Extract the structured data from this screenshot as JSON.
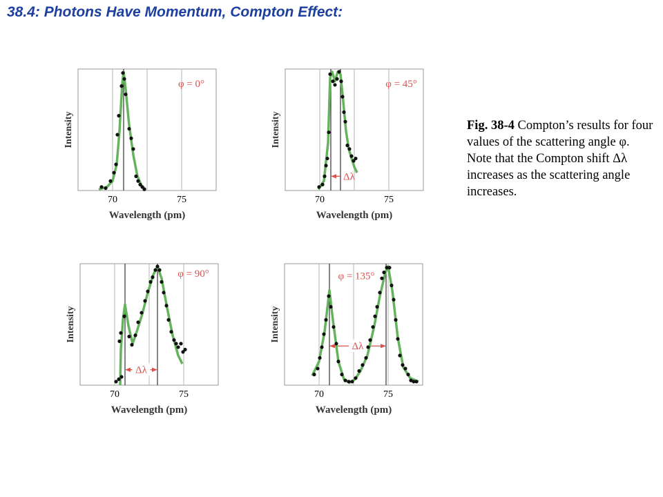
{
  "title": "38.4: Photons Have Momentum, Compton Effect:",
  "caption": {
    "label": "Fig. 38-4",
    "text": "Compton’s results for four values of the scattering angle φ. Note that the Compton shift Δλ increases as the scattering angle increases."
  },
  "chart_data": [
    {
      "type": "scatter",
      "annotation": "φ = 0°",
      "xlabel": "Wavelength (pm)",
      "ylabel": "Intensity",
      "xlim": [
        67.5,
        77.5
      ],
      "ylim": [
        0,
        1
      ],
      "xticks": [
        70,
        75
      ],
      "xgrid": [
        70,
        72.5,
        75
      ],
      "reference_lines": [
        70.8
      ],
      "point_color": "#111111",
      "fit_color": "#66b35e",
      "points": {
        "x": [
          69.2,
          69.5,
          69.85,
          70.1,
          70.25,
          70.35,
          70.45,
          70.65,
          70.75,
          70.85,
          70.95,
          71.2,
          71.35,
          71.5,
          71.7,
          71.85,
          72.0,
          72.15,
          72.3
        ],
        "y": [
          0.03,
          0.02,
          0.08,
          0.15,
          0.22,
          0.47,
          0.63,
          0.88,
          0.99,
          0.94,
          0.81,
          0.52,
          0.44,
          0.35,
          0.12,
          0.08,
          0.05,
          0.03,
          0.01
        ]
      },
      "fit": {
        "x": [
          69.0,
          69.6,
          70.0,
          70.3,
          70.5,
          70.7,
          70.8,
          70.95,
          71.2,
          71.5,
          71.8,
          72.1,
          72.4
        ],
        "y": [
          0.01,
          0.03,
          0.08,
          0.22,
          0.5,
          0.9,
          1.0,
          0.85,
          0.55,
          0.3,
          0.12,
          0.04,
          0.01
        ]
      }
    },
    {
      "type": "scatter",
      "annotation": "φ = 45°",
      "delta_label": "Δλ",
      "xlabel": "Wavelength (pm)",
      "ylabel": "Intensity",
      "xlim": [
        67.5,
        77.5
      ],
      "ylim": [
        0,
        1
      ],
      "xticks": [
        70,
        75
      ],
      "xgrid": [
        70,
        72.5,
        75
      ],
      "reference_lines": [
        70.8,
        71.5
      ],
      "point_color": "#111111",
      "fit_color": "#66b35e",
      "arrow_color": "#d9534f",
      "points": {
        "x": [
          69.95,
          70.2,
          70.35,
          70.45,
          70.55,
          70.65,
          70.75,
          70.95,
          71.1,
          71.25,
          71.4,
          71.55,
          71.65,
          71.75,
          71.85,
          72.0,
          72.15,
          72.3,
          72.45,
          72.6
        ],
        "y": [
          0.03,
          0.05,
          0.12,
          0.21,
          0.27,
          0.49,
          0.98,
          0.92,
          0.89,
          0.94,
          1.0,
          0.92,
          0.79,
          0.66,
          0.58,
          0.38,
          0.35,
          0.29,
          0.25,
          0.27
        ]
      },
      "fit": {
        "x": [
          69.9,
          70.3,
          70.6,
          70.75,
          70.9,
          71.1,
          71.3,
          71.5,
          71.7,
          71.9,
          72.1,
          72.3,
          72.5,
          72.7
        ],
        "y": [
          0.01,
          0.08,
          0.4,
          0.95,
          1.0,
          0.92,
          1.0,
          0.98,
          0.75,
          0.5,
          0.35,
          0.27,
          0.2,
          0.15
        ]
      }
    },
    {
      "type": "scatter",
      "annotation": "φ = 90°",
      "delta_label": "Δλ",
      "xlabel": "Wavelength (pm)",
      "ylabel": "Intensity",
      "xlim": [
        67.5,
        77.5
      ],
      "ylim": [
        0,
        1
      ],
      "xticks": [
        70,
        75
      ],
      "xgrid": [
        70,
        72.5,
        75
      ],
      "reference_lines": [
        70.75,
        73.1
      ],
      "point_color": "#111111",
      "fit_color": "#66b35e",
      "arrow_color": "#d9534f",
      "points": {
        "x": [
          70.1,
          70.3,
          70.5,
          70.35,
          70.45,
          70.7,
          71.05,
          71.25,
          71.5,
          71.7,
          71.95,
          72.2,
          72.4,
          72.6,
          72.75,
          72.95,
          73.1,
          73.25,
          73.4,
          73.55,
          73.75,
          73.9,
          74.1,
          74.3,
          74.45,
          74.6,
          74.8,
          74.95,
          75.1
        ],
        "y": [
          0.03,
          0.05,
          0.07,
          0.37,
          0.44,
          0.58,
          0.41,
          0.34,
          0.42,
          0.53,
          0.61,
          0.71,
          0.79,
          0.87,
          0.91,
          0.97,
          1.0,
          0.97,
          0.87,
          0.78,
          0.67,
          0.55,
          0.45,
          0.38,
          0.35,
          0.32,
          0.35,
          0.28,
          0.3
        ]
      },
      "fit": {
        "x": [
          70.4,
          70.45,
          70.6,
          70.75,
          71.0,
          71.3,
          71.6,
          72.0,
          72.4,
          72.8,
          73.1,
          73.4,
          73.8,
          74.2,
          74.6,
          74.9
        ],
        "y": [
          0.0,
          0.3,
          0.55,
          0.68,
          0.5,
          0.35,
          0.45,
          0.6,
          0.78,
          0.93,
          1.0,
          0.9,
          0.65,
          0.42,
          0.25,
          0.18
        ]
      }
    },
    {
      "type": "scatter",
      "annotation": "φ = 135°",
      "delta_label": "Δλ",
      "xlabel": "Wavelength (pm)",
      "ylabel": "Intensity",
      "xlim": [
        67.5,
        77.5
      ],
      "ylim": [
        0,
        1
      ],
      "xticks": [
        70,
        75
      ],
      "xgrid": [
        70,
        72.5,
        75
      ],
      "reference_lines": [
        70.75,
        74.85
      ],
      "point_color": "#111111",
      "fit_color": "#66b35e",
      "arrow_color": "#d9534f",
      "points": {
        "x": [
          69.65,
          69.9,
          70.05,
          70.2,
          70.35,
          70.5,
          70.7,
          70.85,
          71.05,
          71.25,
          71.4,
          71.65,
          71.9,
          72.15,
          72.4,
          72.65,
          72.9,
          73.15,
          73.4,
          73.55,
          73.7,
          73.9,
          74.05,
          74.2,
          74.4,
          74.55,
          74.7,
          74.9,
          75.1,
          75.25,
          75.4,
          75.55,
          75.7,
          75.85,
          76.05,
          76.25,
          76.45,
          76.65,
          76.85,
          77.05
        ],
        "y": [
          0.09,
          0.14,
          0.23,
          0.32,
          0.43,
          0.55,
          0.75,
          0.66,
          0.49,
          0.35,
          0.2,
          0.09,
          0.04,
          0.03,
          0.03,
          0.06,
          0.12,
          0.17,
          0.23,
          0.32,
          0.38,
          0.49,
          0.58,
          0.66,
          0.78,
          0.9,
          0.95,
          0.99,
          0.99,
          0.84,
          0.72,
          0.55,
          0.39,
          0.25,
          0.17,
          0.14,
          0.09,
          0.04,
          0.03,
          0.03
        ]
      },
      "fit": {
        "x": [
          69.5,
          70.0,
          70.4,
          70.75,
          71.0,
          71.4,
          71.8,
          72.2,
          72.6,
          73.0,
          73.5,
          74.0,
          74.4,
          74.8,
          75.0,
          75.3,
          75.7,
          76.1,
          76.6,
          77.2
        ],
        "y": [
          0.08,
          0.2,
          0.45,
          0.8,
          0.55,
          0.2,
          0.05,
          0.02,
          0.05,
          0.12,
          0.25,
          0.5,
          0.75,
          0.95,
          1.0,
          0.8,
          0.4,
          0.15,
          0.06,
          0.03
        ]
      }
    }
  ]
}
